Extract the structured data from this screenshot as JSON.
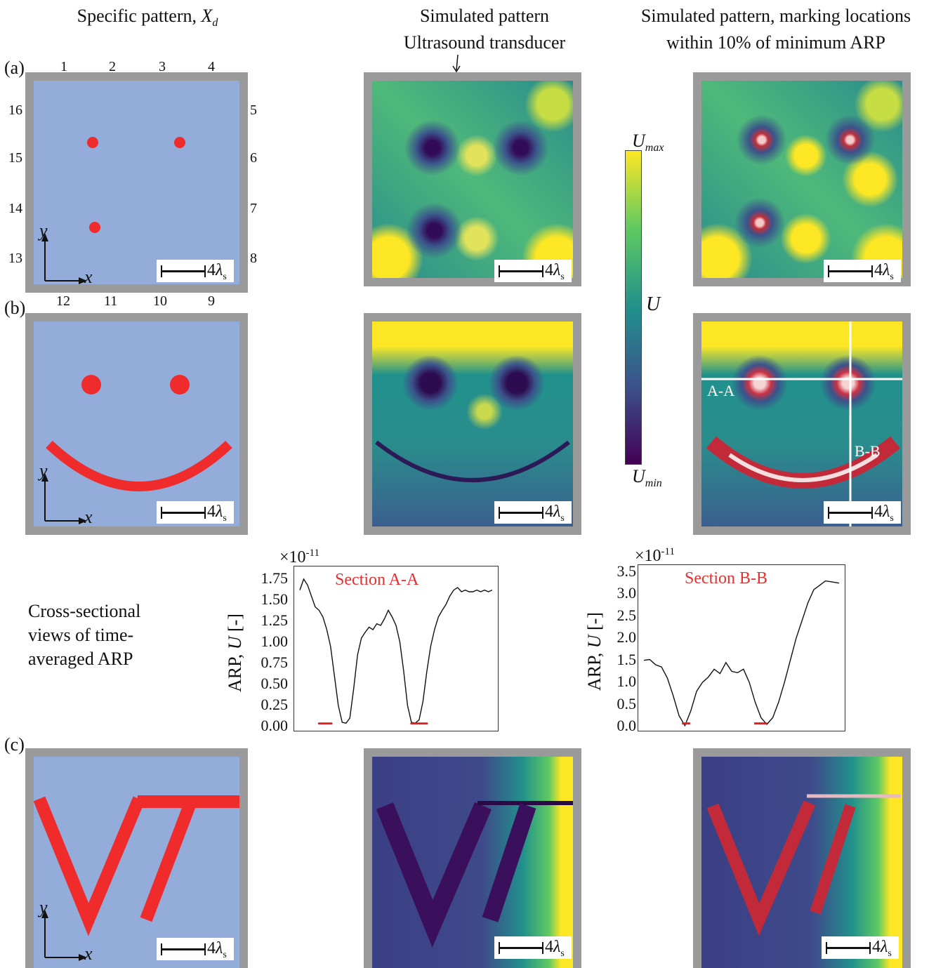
{
  "headers": {
    "col1": "Specific pattern,",
    "col1_symbol": "X",
    "col1_sub": "d",
    "col2_line1": "Simulated pattern",
    "col2_line2": "Ultrasound transducer",
    "col3_line1": "Simulated pattern, marking locations",
    "col3_line2": "within 10% of minimum ARP"
  },
  "row_labels": {
    "a": "(a)",
    "b": "(b)",
    "c": "(c)"
  },
  "transducer_numbers": {
    "top": [
      "1",
      "2",
      "3",
      "4"
    ],
    "right": [
      "5",
      "6",
      "7",
      "8"
    ],
    "bottom": [
      "12",
      "11",
      "10",
      "9"
    ],
    "left": [
      "16",
      "15",
      "14",
      "13"
    ]
  },
  "axes": {
    "x": "x",
    "y": "y"
  },
  "scale_bar": {
    "value": "4",
    "symbol": "λ",
    "sub": "s"
  },
  "colorbar": {
    "max": "U",
    "max_sub": "max",
    "mid": "U",
    "min": "U",
    "min_sub": "min",
    "colors": [
      "#440154",
      "#3b528b",
      "#21918c",
      "#5ec962",
      "#fde725"
    ]
  },
  "section_labels": {
    "aa": "A-A",
    "bb": "B-B"
  },
  "cross_section_text": [
    "Cross-sectional",
    "views of time-",
    "averaged ARP"
  ],
  "plots": {
    "ylabel_prefix": "ARP, ",
    "ylabel_var": "U",
    "ylabel_suffix": " [-]",
    "exp_base": "×10",
    "exp": "-11"
  },
  "chart_data": [
    {
      "type": "line",
      "title": "Section A-A",
      "ylim": [
        0,
        1.8
      ],
      "y_ticks": [
        "1.75",
        "1.50",
        "1.25",
        "1.00",
        "0.75",
        "0.50",
        "0.25",
        "0.00"
      ],
      "x": [
        0,
        2,
        4,
        6,
        8,
        10,
        12,
        14,
        16,
        18,
        20,
        22,
        24,
        26,
        28,
        30,
        32,
        34,
        36,
        38,
        40,
        42,
        44,
        46,
        48,
        50,
        52,
        54,
        56,
        58,
        60,
        62,
        64,
        66,
        68,
        70,
        72,
        74,
        76,
        78,
        80,
        82,
        84,
        86,
        88,
        90,
        92,
        94,
        96,
        98,
        100
      ],
      "values": [
        1.62,
        1.75,
        1.68,
        1.55,
        1.42,
        1.38,
        1.3,
        1.15,
        0.95,
        0.6,
        0.25,
        0.05,
        0.04,
        0.1,
        0.45,
        0.85,
        1.05,
        1.12,
        1.18,
        1.15,
        1.22,
        1.2,
        1.28,
        1.38,
        1.3,
        1.2,
        1.0,
        0.65,
        0.25,
        0.05,
        0.04,
        0.08,
        0.3,
        0.65,
        0.95,
        1.15,
        1.3,
        1.38,
        1.45,
        1.55,
        1.62,
        1.65,
        1.6,
        1.62,
        1.6,
        1.6,
        1.62,
        1.6,
        1.62,
        1.6,
        1.62
      ],
      "minima_marks": [
        [
          10,
          17
        ],
        [
          58,
          66
        ]
      ]
    },
    {
      "type": "line",
      "title": "Section B-B",
      "ylim": [
        0,
        3.5
      ],
      "y_ticks": [
        "3.5",
        "3.0",
        "2.5",
        "2.0",
        "1.5",
        "1.0",
        "0.5",
        "0.0"
      ],
      "x": [
        0,
        3,
        6,
        9,
        12,
        15,
        18,
        21,
        24,
        27,
        30,
        33,
        36,
        39,
        42,
        45,
        48,
        51,
        54,
        57,
        60,
        63,
        66,
        69,
        72,
        75,
        78,
        81,
        84,
        87,
        90,
        93,
        96,
        100
      ],
      "values": [
        1.5,
        1.52,
        1.4,
        1.35,
        1.1,
        0.7,
        0.25,
        0.02,
        0.35,
        0.8,
        1.0,
        1.12,
        1.3,
        1.2,
        1.45,
        1.25,
        1.22,
        1.3,
        1.0,
        0.55,
        0.2,
        0.05,
        0.2,
        0.55,
        1.0,
        1.5,
        2.0,
        2.4,
        2.8,
        3.1,
        3.2,
        3.3,
        3.28,
        3.25
      ],
      "minima_marks": [
        [
          20,
          24
        ],
        [
          57,
          63
        ]
      ]
    }
  ]
}
